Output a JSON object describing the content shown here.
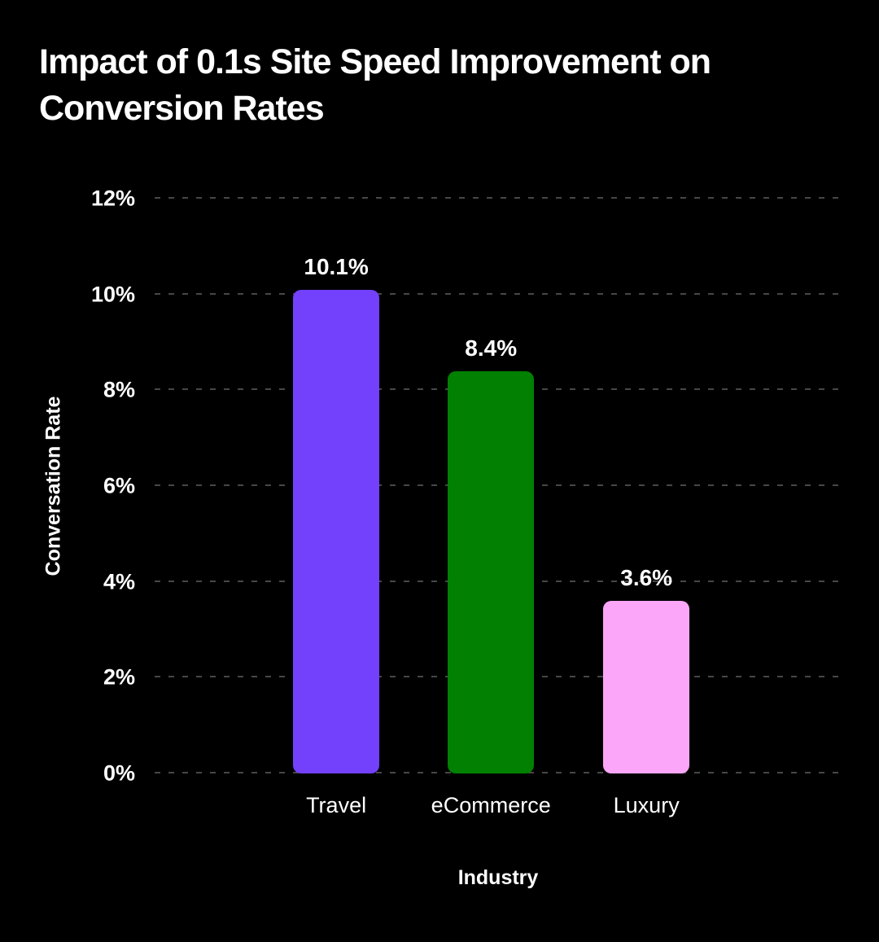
{
  "page": {
    "background_color": "#000000",
    "text_color": "#ffffff",
    "gridline_color": "#474747"
  },
  "chart_data": {
    "type": "bar",
    "title": "Impact of 0.1s Site Speed Improvement on Conversion Rates",
    "xlabel": "Industry",
    "ylabel": "Conversation Rate",
    "categories": [
      "Travel",
      "eCommerce",
      "Luxury"
    ],
    "values": [
      10.1,
      8.4,
      3.6
    ],
    "value_labels": [
      "10.1%",
      "8.4%",
      "3.6%"
    ],
    "bar_colors": [
      "#7340FB",
      "#018001",
      "#FBA6F9"
    ],
    "ylim": [
      0,
      12
    ],
    "yticks": [
      0,
      2,
      4,
      6,
      8,
      10,
      12
    ],
    "ytick_labels": [
      "0%",
      "2%",
      "4%",
      "6%",
      "8%",
      "10%",
      "12%"
    ],
    "grid": "horizontal dashed, includes baseline at 0%",
    "legend": "none",
    "background": "black"
  }
}
